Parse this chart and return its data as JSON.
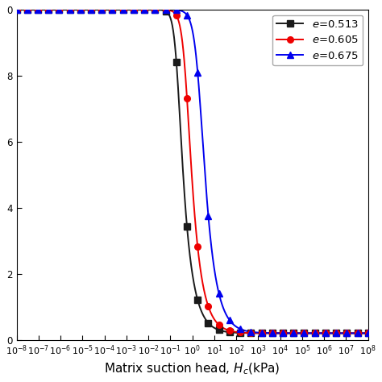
{
  "xlabel": "Matrix suction head, $H_c$(kPa)",
  "xlim_log": [
    -8,
    8
  ],
  "ylim": [
    0,
    1.0
  ],
  "yticks": [
    0.0,
    0.2,
    0.4,
    0.6,
    0.8,
    1.0
  ],
  "ytick_labels": [
    "0",
    "2",
    "4",
    "6",
    "8",
    "0"
  ],
  "series": [
    {
      "label": "$e$=0.513",
      "color": "#1a1a1a",
      "marker": "s",
      "vg_alpha": 5.0,
      "vg_n": 3.5,
      "vg_m": 0.3,
      "vg_theta_r": 0.02,
      "vg_theta_s": 1.0
    },
    {
      "label": "$e$=0.605",
      "color": "#ee0000",
      "marker": "o",
      "vg_alpha": 2.0,
      "vg_n": 3.0,
      "vg_m": 0.35,
      "vg_theta_r": 0.02,
      "vg_theta_s": 1.0
    },
    {
      "label": "$e$=0.675",
      "color": "#0000ee",
      "marker": "^",
      "vg_alpha": 0.5,
      "vg_n": 2.5,
      "vg_m": 0.4,
      "vg_theta_r": 0.02,
      "vg_theta_s": 1.0
    }
  ],
  "figsize": [
    4.74,
    4.74
  ],
  "dpi": 100,
  "linewidth": 1.4,
  "marker_size": 5.5,
  "n_line_pts": 800,
  "n_markers": 34,
  "legend_fontsize": 9.5,
  "axis_fontsize": 11,
  "tick_fontsize": 8.5
}
